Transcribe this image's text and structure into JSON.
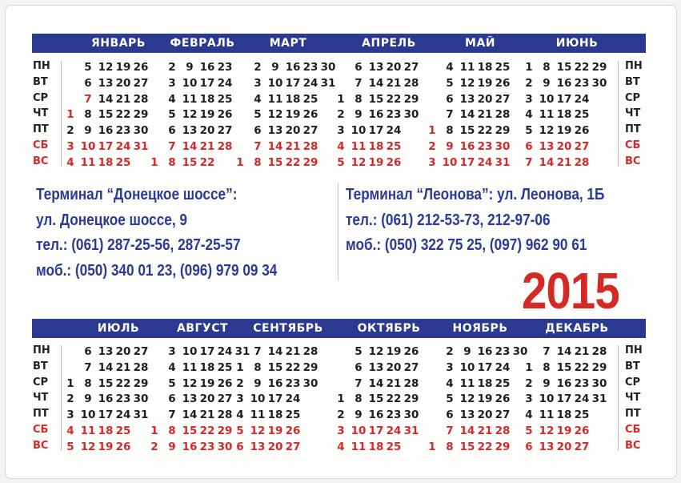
{
  "weekdays": [
    "ПН",
    "ВТ",
    "СР",
    "ЧТ",
    "ПТ",
    "СБ",
    "ВС"
  ],
  "colors": {
    "band": "#2b3990",
    "holiday": "#d22a2a",
    "text": "#2b3a96",
    "year": "#d42a26"
  },
  "months_top": [
    {
      "name": "ЯНВАРЬ",
      "holidays": [
        1,
        7
      ],
      "rows": [
        [
          "",
          5,
          12,
          19,
          26
        ],
        [
          "",
          6,
          13,
          20,
          27
        ],
        [
          "",
          7,
          14,
          21,
          28
        ],
        [
          1,
          8,
          15,
          22,
          29
        ],
        [
          2,
          9,
          16,
          23,
          30
        ],
        [
          3,
          10,
          17,
          24,
          31
        ],
        [
          4,
          11,
          18,
          25
        ]
      ]
    },
    {
      "name": "ФЕВРАЛЬ",
      "holidays": [],
      "rows": [
        [
          "",
          2,
          9,
          16,
          23
        ],
        [
          "",
          3,
          10,
          17,
          24
        ],
        [
          "",
          4,
          11,
          18,
          25
        ],
        [
          "",
          5,
          12,
          19,
          26
        ],
        [
          "",
          6,
          13,
          20,
          27
        ],
        [
          "",
          7,
          14,
          21,
          28
        ],
        [
          1,
          8,
          15,
          22
        ]
      ]
    },
    {
      "name": "МАРТ",
      "holidays": [],
      "rows": [
        [
          "",
          2,
          9,
          16,
          23,
          30
        ],
        [
          "",
          3,
          10,
          17,
          24,
          31
        ],
        [
          "",
          4,
          11,
          18,
          25
        ],
        [
          "",
          5,
          12,
          19,
          26
        ],
        [
          "",
          6,
          13,
          20,
          27
        ],
        [
          "",
          7,
          14,
          21,
          28
        ],
        [
          1,
          8,
          15,
          22,
          29
        ]
      ]
    },
    {
      "name": "АПРЕЛЬ",
      "holidays": [],
      "rows": [
        [
          "",
          6,
          13,
          20,
          27
        ],
        [
          "",
          7,
          14,
          21,
          28
        ],
        [
          1,
          8,
          15,
          22,
          29
        ],
        [
          2,
          9,
          16,
          23,
          30
        ],
        [
          3,
          10,
          17,
          24
        ],
        [
          4,
          11,
          18,
          25
        ],
        [
          5,
          12,
          19,
          26
        ]
      ]
    },
    {
      "name": "МАЙ",
      "holidays": [
        1
      ],
      "rows": [
        [
          "",
          4,
          11,
          18,
          25
        ],
        [
          "",
          5,
          12,
          19,
          26
        ],
        [
          "",
          6,
          13,
          20,
          27
        ],
        [
          "",
          7,
          14,
          21,
          28
        ],
        [
          1,
          8,
          15,
          22,
          29
        ],
        [
          2,
          9,
          16,
          23,
          30
        ],
        [
          3,
          10,
          17,
          24,
          31
        ]
      ]
    },
    {
      "name": "ИЮНЬ",
      "holidays": [],
      "rows": [
        [
          1,
          8,
          15,
          22,
          29
        ],
        [
          2,
          9,
          16,
          23,
          30
        ],
        [
          3,
          10,
          17,
          24
        ],
        [
          4,
          11,
          18,
          25
        ],
        [
          5,
          12,
          19,
          26
        ],
        [
          6,
          13,
          20,
          27
        ],
        [
          7,
          14,
          21,
          28
        ]
      ]
    }
  ],
  "months_bottom": [
    {
      "name": "ИЮЛЬ",
      "holidays": [],
      "rows": [
        [
          "",
          6,
          13,
          20,
          27
        ],
        [
          "",
          7,
          14,
          21,
          28
        ],
        [
          1,
          8,
          15,
          22,
          29
        ],
        [
          2,
          9,
          16,
          23,
          30
        ],
        [
          3,
          10,
          17,
          24,
          31
        ],
        [
          4,
          11,
          18,
          25
        ],
        [
          5,
          12,
          19,
          26
        ]
      ]
    },
    {
      "name": "АВГУСТ",
      "holidays": [],
      "rows": [
        [
          "",
          3,
          10,
          17,
          24,
          31
        ],
        [
          "",
          4,
          11,
          18,
          25
        ],
        [
          "",
          5,
          12,
          19,
          26
        ],
        [
          "",
          6,
          13,
          20,
          27
        ],
        [
          "",
          7,
          14,
          21,
          28
        ],
        [
          1,
          8,
          15,
          22,
          29
        ],
        [
          2,
          9,
          16,
          23,
          30
        ]
      ]
    },
    {
      "name": "СЕНТЯБРЬ",
      "holidays": [],
      "rows": [
        [
          "",
          7,
          14,
          21,
          28
        ],
        [
          1,
          8,
          15,
          22,
          29
        ],
        [
          2,
          9,
          16,
          23,
          30
        ],
        [
          3,
          10,
          17,
          24
        ],
        [
          4,
          11,
          18,
          25
        ],
        [
          5,
          12,
          19,
          26
        ],
        [
          6,
          13,
          20,
          27
        ]
      ]
    },
    {
      "name": "ОКТЯБРЬ",
      "holidays": [],
      "rows": [
        [
          "",
          5,
          12,
          19,
          26
        ],
        [
          "",
          6,
          13,
          20,
          27
        ],
        [
          "",
          7,
          14,
          21,
          28
        ],
        [
          1,
          8,
          15,
          22,
          29
        ],
        [
          2,
          9,
          16,
          23,
          30
        ],
        [
          3,
          10,
          17,
          24,
          31
        ],
        [
          4,
          11,
          18,
          25
        ]
      ]
    },
    {
      "name": "НОЯБРЬ",
      "holidays": [],
      "rows": [
        [
          "",
          2,
          9,
          16,
          23,
          30
        ],
        [
          "",
          3,
          10,
          17,
          24
        ],
        [
          "",
          4,
          11,
          18,
          25
        ],
        [
          "",
          5,
          12,
          19,
          26
        ],
        [
          "",
          6,
          13,
          20,
          27
        ],
        [
          "",
          7,
          14,
          21,
          28
        ],
        [
          1,
          8,
          15,
          22,
          29
        ]
      ]
    },
    {
      "name": "ДЕКАБРЬ",
      "holidays": [],
      "rows": [
        [
          "",
          7,
          14,
          21,
          28
        ],
        [
          1,
          8,
          15,
          22,
          29
        ],
        [
          2,
          9,
          16,
          23,
          30
        ],
        [
          3,
          10,
          17,
          24,
          31
        ],
        [
          4,
          11,
          18,
          25
        ],
        [
          5,
          12,
          19,
          26
        ],
        [
          6,
          13,
          20,
          27
        ]
      ]
    }
  ],
  "terminal_left": {
    "title": "Терминал “Донецкое шоссе”:",
    "address": "ул. Донецкое шоссе, 9",
    "phone": "тел.: (061) 287-25-56, 287-25-57",
    "mobile": "моб.: (050) 340 01 23, (096) 979 09 34"
  },
  "terminal_right": {
    "title": "Терминал “Леонова”: ул. Леонова, 1Б",
    "phone": "тел.:  (061) 212-53-73, 212-97-06",
    "mobile": "моб.: (050) 322 75 25, (097) 962 90 61"
  },
  "year": "2015"
}
